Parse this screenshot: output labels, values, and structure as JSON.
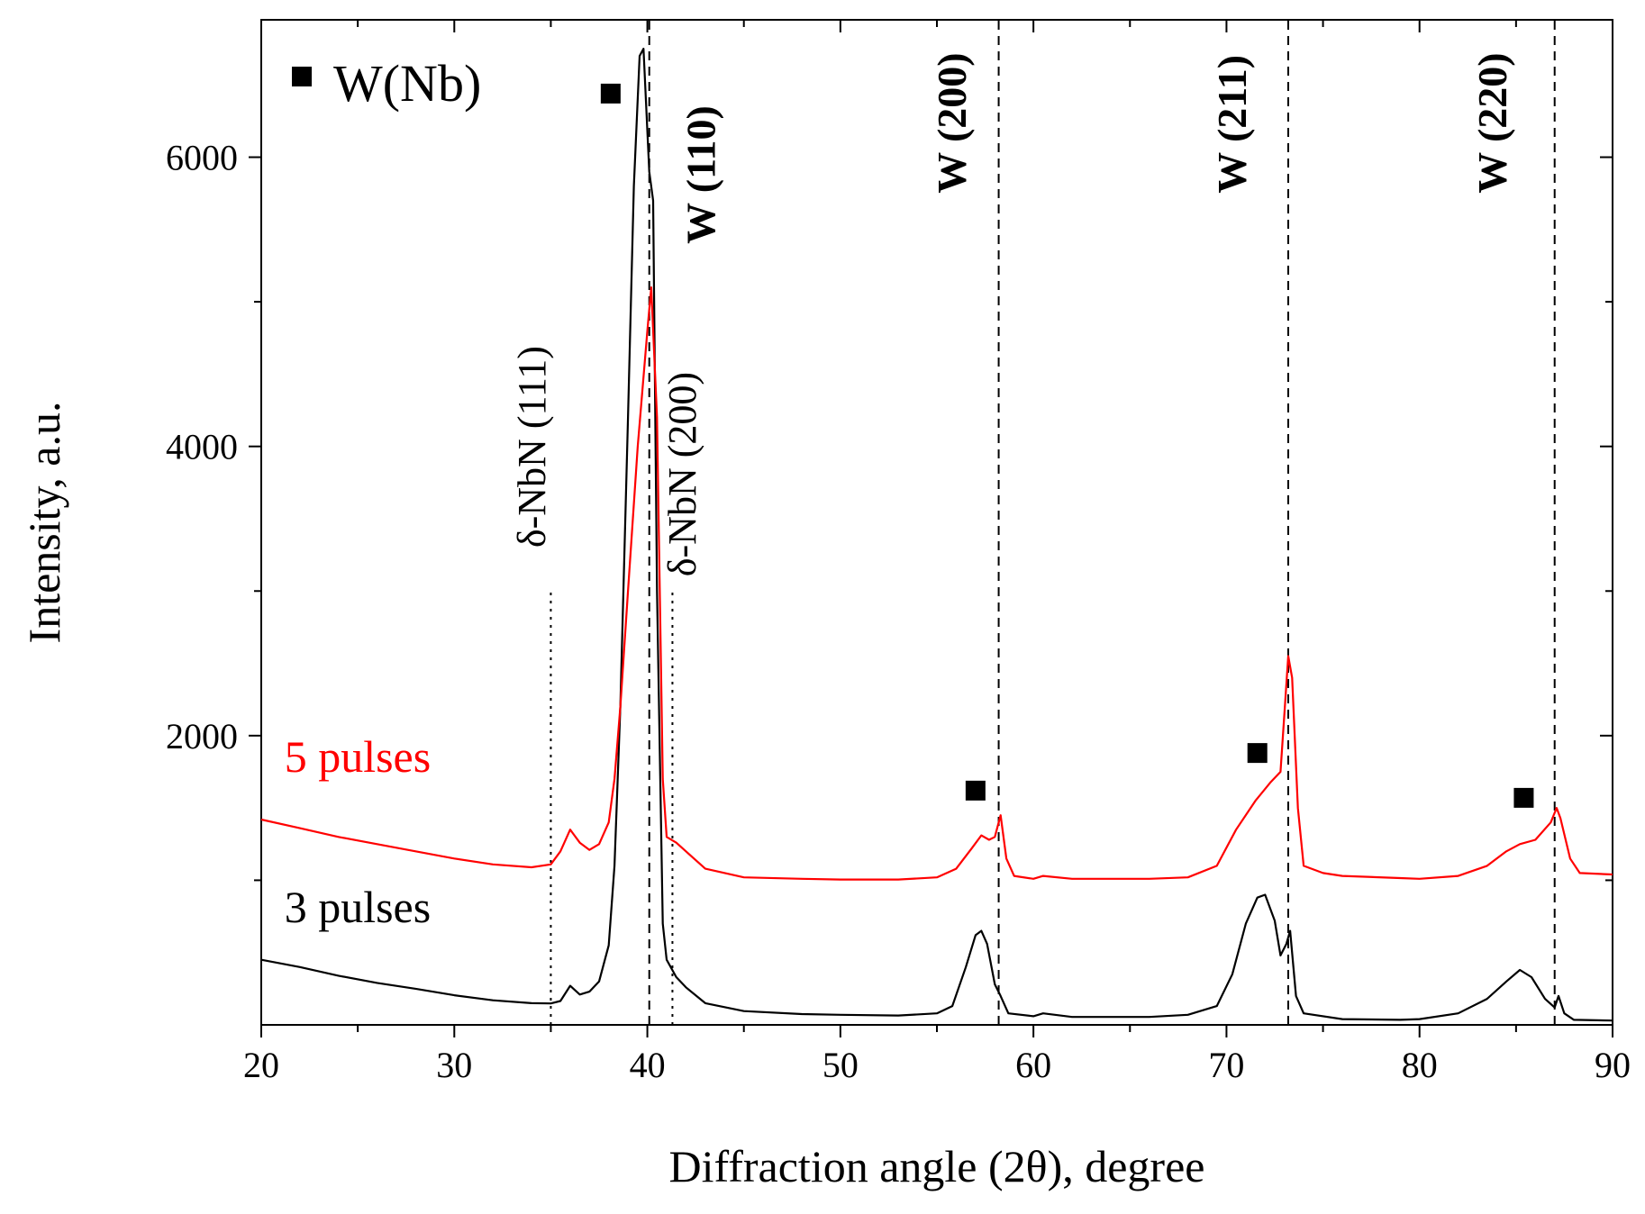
{
  "chart_data": {
    "type": "line",
    "title": "",
    "xlabel": "Diffraction angle (2θ), degree",
    "ylabel": "Intensity, a.u.",
    "xlim": [
      20,
      90
    ],
    "ylim": [
      0,
      6950
    ],
    "xticks": [
      20,
      30,
      40,
      50,
      60,
      70,
      80,
      90
    ],
    "xtick_labels": [
      "20",
      "30",
      "40",
      "50",
      "60",
      "70",
      "80",
      "90"
    ],
    "yticks": [
      2000,
      4000,
      6000
    ],
    "ytick_labels": [
      "2000",
      "4000",
      "6000"
    ],
    "grid": false,
    "legend": {
      "marker_label": "W(Nb)",
      "position": "top-left"
    },
    "series": [
      {
        "name": "3 pulses",
        "color": "#000000",
        "points": [
          [
            20,
            450
          ],
          [
            22,
            400
          ],
          [
            24,
            340
          ],
          [
            26,
            290
          ],
          [
            28,
            250
          ],
          [
            30,
            205
          ],
          [
            32,
            170
          ],
          [
            34,
            150
          ],
          [
            35,
            148
          ],
          [
            35.5,
            165
          ],
          [
            36,
            270
          ],
          [
            36.5,
            210
          ],
          [
            37,
            230
          ],
          [
            37.5,
            300
          ],
          [
            38,
            550
          ],
          [
            38.3,
            1100
          ],
          [
            38.6,
            2200
          ],
          [
            39,
            4200
          ],
          [
            39.3,
            5800
          ],
          [
            39.6,
            6700
          ],
          [
            39.8,
            6750
          ],
          [
            40.1,
            5900
          ],
          [
            40.3,
            5700
          ],
          [
            40.5,
            3000
          ],
          [
            40.8,
            700
          ],
          [
            41,
            450
          ],
          [
            41.5,
            330
          ],
          [
            42,
            260
          ],
          [
            43,
            150
          ],
          [
            45,
            95
          ],
          [
            48,
            75
          ],
          [
            50,
            70
          ],
          [
            53,
            65
          ],
          [
            55,
            80
          ],
          [
            55.8,
            130
          ],
          [
            56.5,
            400
          ],
          [
            57,
            620
          ],
          [
            57.3,
            650
          ],
          [
            57.6,
            560
          ],
          [
            58,
            280
          ],
          [
            58.3,
            200
          ],
          [
            58.7,
            80
          ],
          [
            60,
            60
          ],
          [
            60.5,
            80
          ],
          [
            62,
            55
          ],
          [
            66,
            55
          ],
          [
            68,
            70
          ],
          [
            69.5,
            130
          ],
          [
            70.3,
            350
          ],
          [
            71,
            700
          ],
          [
            71.6,
            880
          ],
          [
            72,
            900
          ],
          [
            72.5,
            720
          ],
          [
            72.8,
            480
          ],
          [
            73.1,
            560
          ],
          [
            73.3,
            650
          ],
          [
            73.6,
            200
          ],
          [
            74,
            80
          ],
          [
            76,
            40
          ],
          [
            79,
            35
          ],
          [
            80,
            40
          ],
          [
            82,
            80
          ],
          [
            83.5,
            180
          ],
          [
            84.5,
            300
          ],
          [
            85.2,
            380
          ],
          [
            85.8,
            330
          ],
          [
            86.5,
            180
          ],
          [
            87,
            120
          ],
          [
            87.2,
            200
          ],
          [
            87.5,
            80
          ],
          [
            88,
            35
          ],
          [
            90,
            30
          ]
        ]
      },
      {
        "name": "5 pulses",
        "color": "#ff0000",
        "points": [
          [
            20,
            1420
          ],
          [
            22,
            1360
          ],
          [
            24,
            1300
          ],
          [
            26,
            1250
          ],
          [
            28,
            1200
          ],
          [
            30,
            1150
          ],
          [
            32,
            1110
          ],
          [
            34,
            1090
          ],
          [
            35,
            1110
          ],
          [
            35.5,
            1200
          ],
          [
            36,
            1350
          ],
          [
            36.5,
            1260
          ],
          [
            37,
            1210
          ],
          [
            37.5,
            1250
          ],
          [
            38,
            1400
          ],
          [
            38.3,
            1700
          ],
          [
            38.6,
            2200
          ],
          [
            39,
            3000
          ],
          [
            39.5,
            4000
          ],
          [
            40,
            4800
          ],
          [
            40.2,
            5100
          ],
          [
            40.5,
            4200
          ],
          [
            40.8,
            1700
          ],
          [
            41,
            1300
          ],
          [
            41.5,
            1260
          ],
          [
            42,
            1200
          ],
          [
            43,
            1080
          ],
          [
            45,
            1020
          ],
          [
            48,
            1010
          ],
          [
            50,
            1005
          ],
          [
            53,
            1005
          ],
          [
            55,
            1020
          ],
          [
            56,
            1080
          ],
          [
            56.8,
            1220
          ],
          [
            57.3,
            1310
          ],
          [
            57.7,
            1280
          ],
          [
            58,
            1300
          ],
          [
            58.3,
            1450
          ],
          [
            58.6,
            1150
          ],
          [
            59,
            1030
          ],
          [
            60,
            1010
          ],
          [
            60.5,
            1030
          ],
          [
            62,
            1010
          ],
          [
            66,
            1010
          ],
          [
            68,
            1020
          ],
          [
            69.5,
            1100
          ],
          [
            70.5,
            1350
          ],
          [
            71.5,
            1550
          ],
          [
            72.3,
            1680
          ],
          [
            72.8,
            1750
          ],
          [
            73.2,
            2550
          ],
          [
            73.4,
            2400
          ],
          [
            73.7,
            1500
          ],
          [
            74,
            1100
          ],
          [
            75,
            1050
          ],
          [
            76,
            1030
          ],
          [
            79,
            1015
          ],
          [
            80,
            1010
          ],
          [
            82,
            1030
          ],
          [
            83.5,
            1100
          ],
          [
            84.5,
            1200
          ],
          [
            85.2,
            1250
          ],
          [
            86,
            1280
          ],
          [
            86.8,
            1400
          ],
          [
            87.1,
            1500
          ],
          [
            87.3,
            1430
          ],
          [
            87.8,
            1150
          ],
          [
            88.3,
            1050
          ],
          [
            90,
            1040
          ]
        ]
      }
    ],
    "series_labels": [
      {
        "text": "5 pulses",
        "color": "#ff0000",
        "x": 21.2,
        "y": 1750
      },
      {
        "text": "3 pulses",
        "color": "#000000",
        "x": 21.2,
        "y": 710
      }
    ],
    "reference_lines": [
      {
        "x": 35.0,
        "style": "dotted",
        "y_top": 3000,
        "label": "δ-NbN (111)",
        "label_x": 34.7,
        "bold": false
      },
      {
        "x": 41.3,
        "style": "dotted",
        "y_top": 3000,
        "label": "δ-NbN (200)",
        "label_x": 42.5,
        "bold": false
      },
      {
        "x": 40.1,
        "style": "dashed",
        "y_top": 6950,
        "label": "W (110)",
        "label_x": 43.5,
        "bold": true
      },
      {
        "x": 58.2,
        "style": "dashed",
        "y_top": 6950,
        "label": "W (200)",
        "label_x": 56.5,
        "bold": true
      },
      {
        "x": 73.2,
        "style": "dashed",
        "y_top": 6950,
        "label": "W (211)",
        "label_x": 71.0,
        "bold": true
      },
      {
        "x": 87.0,
        "style": "dashed",
        "y_top": 6950,
        "label": "W (220)",
        "label_x": 84.5,
        "bold": true
      }
    ],
    "square_markers": [
      {
        "x": 38.1,
        "y": 6440
      },
      {
        "x": 57.0,
        "y": 1620
      },
      {
        "x": 71.6,
        "y": 1880
      },
      {
        "x": 85.4,
        "y": 1570
      }
    ]
  }
}
